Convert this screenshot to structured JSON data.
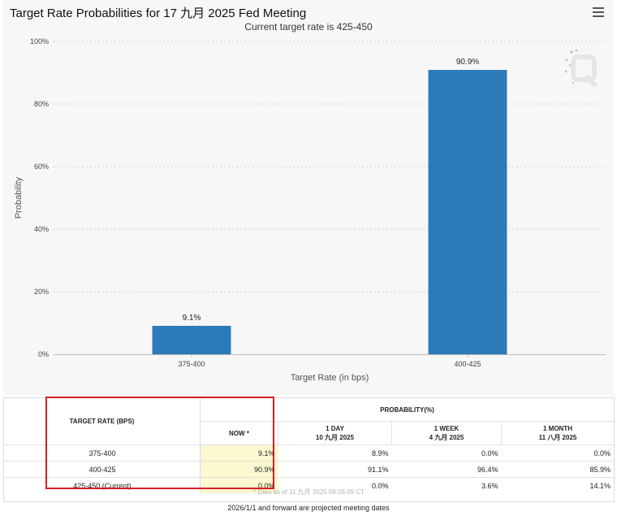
{
  "header": {
    "title": "Target Rate Probabilities for 17 九月 2025 Fed Meeting",
    "menu_icon": "hamburger-menu-icon"
  },
  "chart_data": {
    "type": "bar",
    "subtitle": "Current target rate is 425-450",
    "xlabel": "Target Rate (in bps)",
    "ylabel": "Probability",
    "categories": [
      "375-400",
      "400-425"
    ],
    "values": [
      9.1,
      90.9
    ],
    "data_labels": [
      "9.1%",
      "90.9%"
    ],
    "ylim": [
      0,
      100
    ],
    "yticks": [
      0,
      20,
      40,
      60,
      80,
      100
    ],
    "ytick_labels": [
      "0%",
      "20%",
      "40%",
      "60%",
      "80%",
      "100%"
    ],
    "grid": true,
    "bar_color": "#2b7bba"
  },
  "table": {
    "col_rate": "TARGET RATE (BPS)",
    "col_group": "PROBABILITY(%)",
    "sub_headers": [
      {
        "line1": "NOW *",
        "line2": ""
      },
      {
        "line1": "1 DAY",
        "line2": "10 九月 2025"
      },
      {
        "line1": "1 WEEK",
        "line2": "4 九月 2025"
      },
      {
        "line1": "1 MONTH",
        "line2": "11 八月 2025"
      }
    ],
    "rows": [
      {
        "rate": "375-400",
        "values": [
          "9.1%",
          "8.9%",
          "0.0%",
          "0.0%"
        ]
      },
      {
        "rate": "400-425",
        "values": [
          "90.9%",
          "91.1%",
          "96.4%",
          "85.9%"
        ]
      },
      {
        "rate": "425-450 (Current)",
        "values": [
          "0.0%",
          "0.0%",
          "3.6%",
          "14.1%"
        ]
      }
    ],
    "data_note": "* Data as of 11 九月 2025 08:06:09 CT",
    "highlight_color": "#d21f26"
  },
  "footer": {
    "note": "2026/1/1 and forward are projected meeting dates"
  }
}
